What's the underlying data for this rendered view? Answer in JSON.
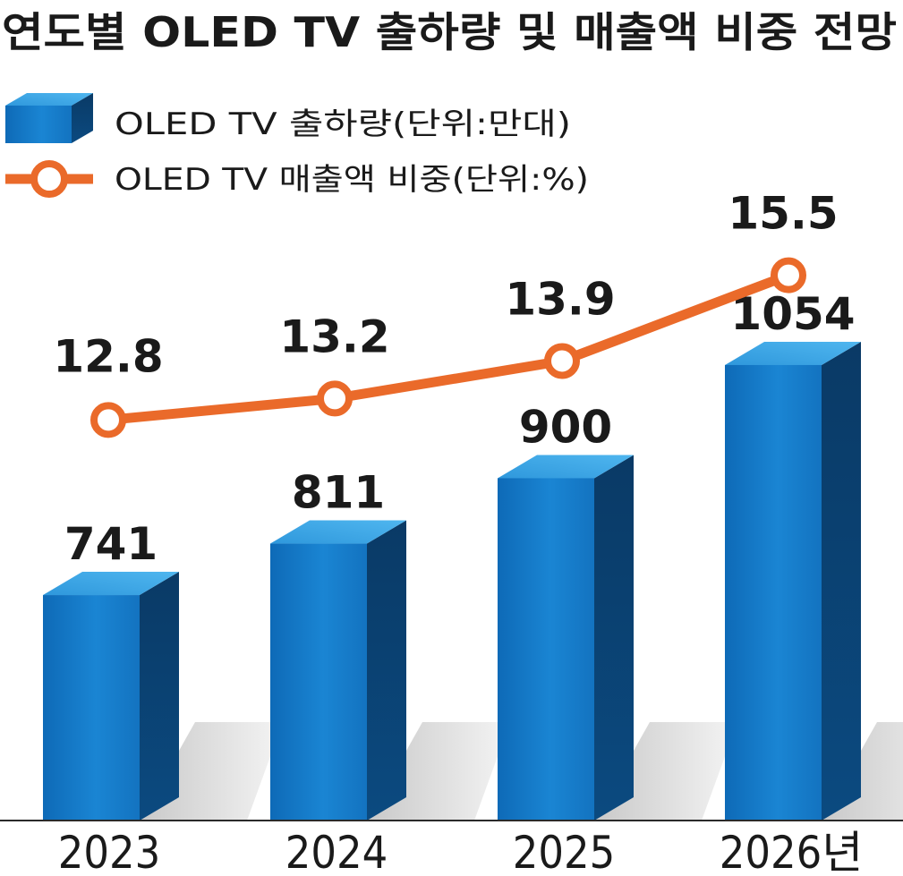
{
  "chart_data": {
    "type": "bar+line",
    "title": "연도별 OLED TV 출하량 및 매출액 비중 전망",
    "categories": [
      "2023",
      "2024",
      "2025",
      "2026년"
    ],
    "series": [
      {
        "name": "OLED TV 출하량(단위:만대)",
        "type": "bar",
        "values": [
          741,
          811,
          900,
          1054
        ],
        "labels": [
          "741",
          "811",
          "900",
          "1054"
        ]
      },
      {
        "name": "OLED TV 매출액 비중(단위:%)",
        "type": "line",
        "values": [
          12.8,
          13.2,
          13.9,
          15.5
        ],
        "labels": [
          "12.8",
          "13.2",
          "13.9",
          "15.5"
        ]
      }
    ],
    "legend_position": "top-left",
    "grid": false
  },
  "colors": {
    "bar_front": "#1277c6",
    "bar_top": "#3aa6e6",
    "bar_side": "#0a3f6e",
    "line": "#ea6a2a",
    "marker_fill": "#ffffff",
    "text": "#1a1a1a",
    "shadow": "#d6d6d6"
  }
}
